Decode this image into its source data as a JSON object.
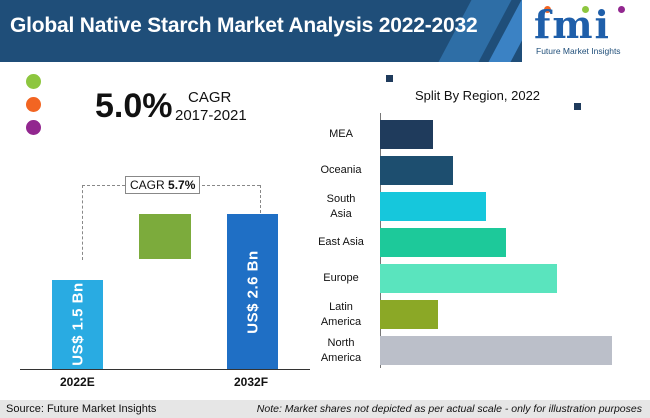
{
  "header": {
    "title": "Global Native Starch Market Analysis 2022-2032",
    "logo_text": "fmi",
    "logo_subtitle": "Future Market Insights"
  },
  "legend_dots": [
    {
      "color": "#8dc63f"
    },
    {
      "color": "#f26522"
    },
    {
      "color": "#92278f"
    }
  ],
  "cagr_panel": {
    "value": "5.0%",
    "label": "CAGR",
    "period": "2017-2021"
  },
  "forecast": {
    "cagr_prefix": "CAGR",
    "cagr_value": "5.7%",
    "bars": [
      {
        "category": "2022E",
        "value": 1.5,
        "label": "US$ 1.5 Bn",
        "color": "#29abe2"
      },
      {
        "category": "2032F",
        "value": 2.6,
        "label": "US$ 2.6 Bn",
        "color": "#1f6fc5"
      }
    ],
    "growth_color": "#7cab3c"
  },
  "chart_data": [
    {
      "type": "bar",
      "categories": [
        "2022E",
        "2032F"
      ],
      "values": [
        1.5,
        2.6
      ],
      "title": "",
      "annotation": "CAGR 5.7%",
      "data_labels": [
        "US$ 1.5 Bn",
        "US$ 2.6 Bn"
      ]
    },
    {
      "type": "bar",
      "orientation": "horizontal",
      "title": "Split By Region, 2022",
      "categories": [
        "MEA",
        "Oceania",
        "South Asia",
        "East Asia",
        "Europe",
        "Latin America",
        "North America"
      ],
      "values": [
        22,
        30,
        44,
        52,
        73,
        24,
        96
      ],
      "colors": [
        "#1f3b5c",
        "#1d4e6f",
        "#16c7dc",
        "#1dc99a",
        "#5ae4be",
        "#8ba826",
        "#bbbfc9"
      ],
      "xlim": [
        0,
        100
      ],
      "grid": false
    }
  ],
  "region": {
    "title": "Split By Region, 2022",
    "label_lines": [
      [
        "MEA"
      ],
      [
        "Oceania"
      ],
      [
        "South",
        "Asia"
      ],
      [
        "East Asia"
      ],
      [
        "Europe"
      ],
      [
        "Latin",
        "America"
      ],
      [
        "North",
        "America"
      ]
    ]
  },
  "footer": {
    "source": "Source: Future Market Insights",
    "note": "Note: Market shares not depicted as per actual scale - only for illustration purposes"
  }
}
